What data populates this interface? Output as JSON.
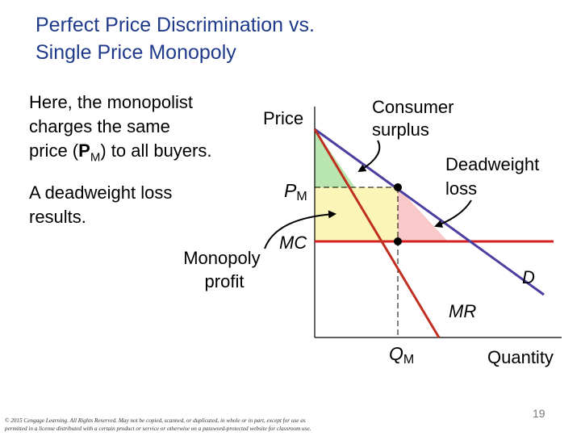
{
  "title": {
    "line1": "Perfect Price Discrimination vs.",
    "line2": "Single Price Monopoly"
  },
  "explanation": {
    "line1": "Here, the monopolist",
    "line2": "charges the same",
    "line3_pre": "price (",
    "line3_p": "P",
    "line3_sub": "M",
    "line3_post": ") to all buyers.",
    "result_line1": "A deadweight loss",
    "result_line2": "results."
  },
  "diagram": {
    "y_axis_label": "Price",
    "x_axis_label": "Quantity",
    "price_label": "P",
    "price_label_sub": "M",
    "quantity_label": "Q",
    "quantity_label_sub": "M",
    "mc_label": "MC",
    "mr_label": "MR",
    "d_label": "D",
    "consumer_surplus_line1": "Consumer",
    "consumer_surplus_line2": "surplus",
    "deadweight_line1": "Deadweight",
    "deadweight_line2": "loss",
    "profit_line1": "Monopoly",
    "profit_line2": "profit",
    "colors": {
      "demand": "#4b3fa0",
      "mc": "#d42020",
      "mr": "#c03020",
      "consumer_surplus": "#b9e6b0",
      "profit": "#fbf5b8",
      "deadweight": "#f9c9c9",
      "title": "#1f3a8a"
    }
  },
  "footer": {
    "copyright_line1": "© 2015 Cengage Learning. All Rights Reserved. May not be copied, scanned, or duplicated, in whole or in part, except for use as",
    "copyright_line2": "permitted in a license distributed with a certain product or service or otherwise on a password-protected website for classroom use.",
    "page_number": "19"
  }
}
